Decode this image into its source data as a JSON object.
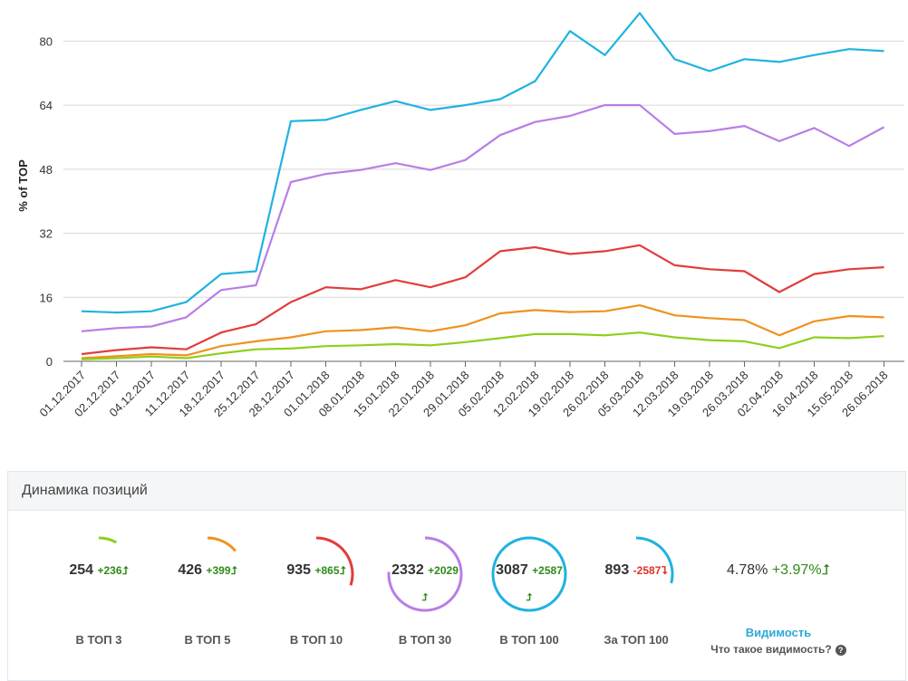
{
  "chart_data": {
    "type": "line",
    "ylabel": "% of TOP",
    "xlabel": "",
    "ylim": [
      0,
      88
    ],
    "yticks": [
      0,
      16,
      32,
      48,
      64,
      80
    ],
    "grid": true,
    "categories": [
      "01.12.2017",
      "02.12.2017",
      "04.12.2017",
      "11.12.2017",
      "18.12.2017",
      "25.12.2017",
      "28.12.2017",
      "01.01.2018",
      "08.01.2018",
      "15.01.2018",
      "22.01.2018",
      "29.01.2018",
      "05.02.2018",
      "12.02.2018",
      "19.02.2018",
      "26.02.2018",
      "05.03.2018",
      "12.03.2018",
      "19.03.2018",
      "26.03.2018",
      "02.04.2018",
      "16.04.2018",
      "15.05.2018",
      "26.06.2018"
    ],
    "series": [
      {
        "name": "В ТОП 100",
        "color": "#1fb3e0",
        "values": [
          12.5,
          12.2,
          12.5,
          14.8,
          21.8,
          22.5,
          60.0,
          60.3,
          62.8,
          65.0,
          62.8,
          64.0,
          65.5,
          70.0,
          82.5,
          76.5,
          87.0,
          75.5,
          72.5,
          75.5,
          74.8,
          76.5,
          78.0,
          77.5
        ]
      },
      {
        "name": "В ТОП 30",
        "color": "#b97ee6",
        "values": [
          7.5,
          8.3,
          8.7,
          11.0,
          17.8,
          19.0,
          44.8,
          46.8,
          47.8,
          49.5,
          47.8,
          50.3,
          56.5,
          59.8,
          61.3,
          64.0,
          64.0,
          56.8,
          57.5,
          58.8,
          55.0,
          58.3,
          53.8,
          58.5
        ]
      },
      {
        "name": "В ТОП 10",
        "color": "#e23c3c",
        "values": [
          1.8,
          2.8,
          3.5,
          3.0,
          7.2,
          9.3,
          14.8,
          18.5,
          18.0,
          20.3,
          18.5,
          21.0,
          27.5,
          28.5,
          26.8,
          27.5,
          29.0,
          24.0,
          23.0,
          22.5,
          17.3,
          21.8,
          23.0,
          23.5
        ]
      },
      {
        "name": "В ТОП 5",
        "color": "#f0921e",
        "values": [
          0.8,
          1.3,
          1.8,
          1.5,
          3.8,
          5.0,
          6.0,
          7.5,
          7.8,
          8.5,
          7.5,
          9.0,
          12.0,
          12.8,
          12.3,
          12.5,
          14.0,
          11.5,
          10.8,
          10.3,
          6.5,
          10.0,
          11.3,
          11.0
        ]
      },
      {
        "name": "В ТОП 3",
        "color": "#8fcf1c",
        "values": [
          0.5,
          0.8,
          1.2,
          0.8,
          2.0,
          3.0,
          3.2,
          3.8,
          4.0,
          4.3,
          4.0,
          4.8,
          5.8,
          6.8,
          6.8,
          6.5,
          7.2,
          6.0,
          5.3,
          5.0,
          3.3,
          6.0,
          5.8,
          6.3
        ]
      }
    ]
  },
  "panel": {
    "title": "Динамика позиций",
    "stats": [
      {
        "value": "254",
        "delta": "+236",
        "arrow": "⮥",
        "trend": "up",
        "label": "В ТОП 3",
        "color": "#8fcf1c",
        "fraction": 0.08
      },
      {
        "value": "426",
        "delta": "+399",
        "arrow": "⮥",
        "trend": "up",
        "label": "В ТОП 5",
        "color": "#f0921e",
        "fraction": 0.14
      },
      {
        "value": "935",
        "delta": "+865",
        "arrow": "⮥",
        "trend": "up",
        "label": "В ТОП 10",
        "color": "#e23c3c",
        "fraction": 0.3
      },
      {
        "value": "2332",
        "delta": "+2029",
        "arrow": "⮥",
        "trend": "up",
        "label": "В ТОП 30",
        "color": "#b97ee6",
        "fraction": 0.76
      },
      {
        "value": "3087",
        "delta": "+2587",
        "arrow": "⮥",
        "trend": "up",
        "label": "В ТОП 100",
        "color": "#1fb3e0",
        "fraction": 1.0
      },
      {
        "value": "893",
        "delta": "-2587",
        "arrow": "⮧",
        "trend": "down",
        "label": "За ТОП 100",
        "color": "#1fb3e0",
        "fraction": 0.29
      }
    ],
    "visibility": {
      "value": "4.78%",
      "delta": "+3.97%",
      "arrow": "⮥",
      "title": "Видимость",
      "help_text": "Что такое видимость?",
      "help_icon": "?"
    }
  }
}
